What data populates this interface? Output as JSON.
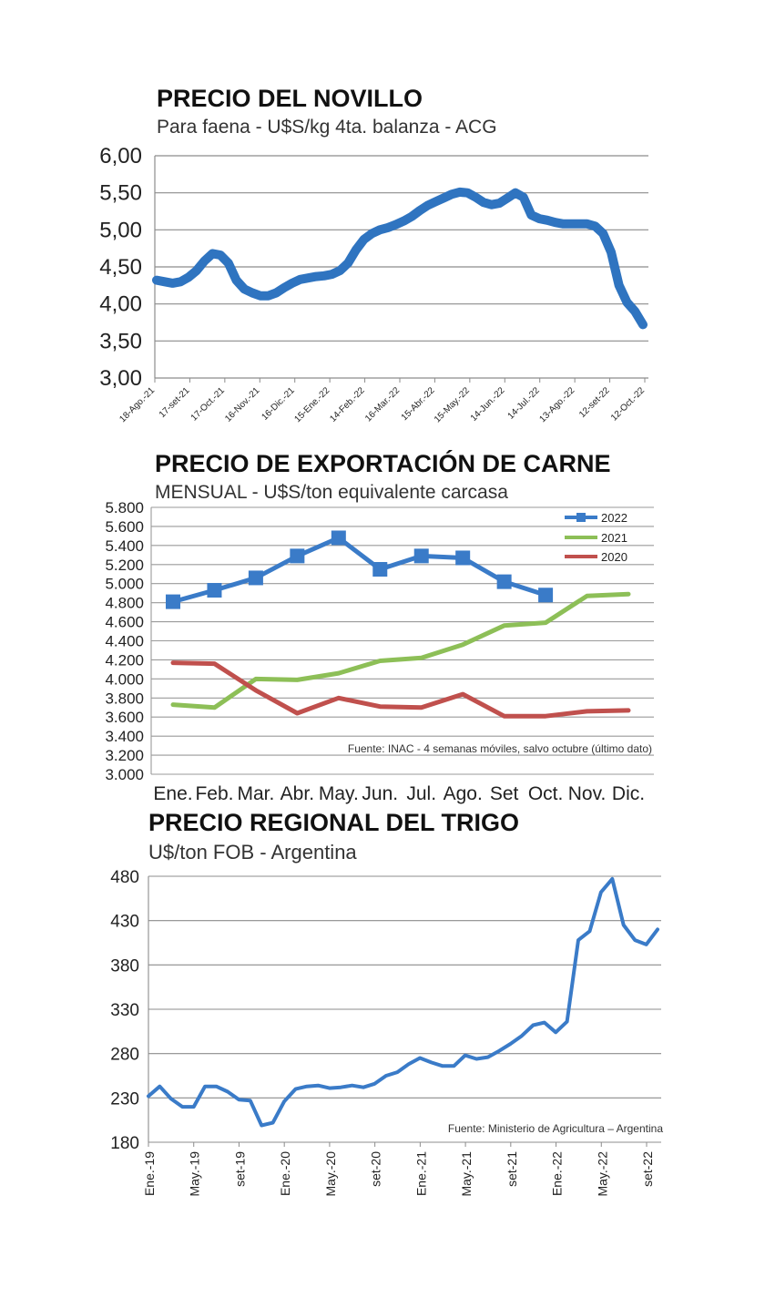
{
  "chart_data": [
    {
      "type": "line",
      "title": "PRECIO DEL NOVILLO",
      "subtitle": "Para faena - U$S/kg 4ta. balanza - ACG",
      "x_tick_labels": [
        "18-Ago.-21",
        "17-set-21",
        "17-Oct.-21",
        "16-Nov.-21",
        "16-Dic.-21",
        "15-Ene.-22",
        "14-Feb.-22",
        "16-Mar.-22",
        "15-Abr.-22",
        "15-May.-22",
        "14-Jun.-22",
        "14-Jul.-22",
        "13-Ago.-22",
        "12-set-22",
        "12-Oct.-22"
      ],
      "y_tick_labels": [
        "6,00",
        "5,50",
        "5,00",
        "4,50",
        "4,00",
        "3,50",
        "3,00"
      ],
      "ylim": [
        3,
        6
      ],
      "grid": true,
      "color": "#2f74c0",
      "values": [
        4.32,
        4.3,
        4.28,
        4.3,
        4.36,
        4.45,
        4.58,
        4.68,
        4.66,
        4.55,
        4.32,
        4.2,
        4.15,
        4.11,
        4.11,
        4.15,
        4.22,
        4.28,
        4.33,
        4.35,
        4.37,
        4.38,
        4.4,
        4.45,
        4.55,
        4.73,
        4.87,
        4.95,
        5.0,
        5.03,
        5.07,
        5.12,
        5.18,
        5.26,
        5.33,
        5.38,
        5.43,
        5.48,
        5.51,
        5.5,
        5.44,
        5.37,
        5.34,
        5.36,
        5.43,
        5.5,
        5.44,
        5.2,
        5.15,
        5.13,
        5.1,
        5.08,
        5.08,
        5.08,
        5.08,
        5.05,
        4.95,
        4.7,
        4.25,
        4.02,
        3.9,
        3.72
      ]
    },
    {
      "type": "line",
      "title": "PRECIO DE EXPORTACIÓN DE CARNE",
      "subtitle": "MENSUAL - U$S/ton equivalente carcasa",
      "categories": [
        "Ene.",
        "Feb.",
        "Mar.",
        "Abr.",
        "May.",
        "Jun.",
        "Jul.",
        "Ago.",
        "Set",
        "Oct.",
        "Nov.",
        "Dic."
      ],
      "y_tick_labels": [
        "5.800",
        "5.600",
        "5.400",
        "5.200",
        "5.000",
        "4.800",
        "4.600",
        "4.400",
        "4.200",
        "4.000",
        "3.800",
        "3.600",
        "3.400",
        "3.200",
        "3.000"
      ],
      "ylim": [
        3000,
        5800
      ],
      "legend": "top-right",
      "source": "Fuente: INAC - 4 semanas móviles, salvo octubre (último dato)",
      "series": [
        {
          "name": "2022",
          "color": "#3a7bc8",
          "marker": "square",
          "values": [
            4810,
            4930,
            5060,
            5290,
            5480,
            5150,
            5290,
            5270,
            5020,
            4880,
            null,
            null
          ]
        },
        {
          "name": "2021",
          "color": "#8dbf57",
          "values": [
            3730,
            3700,
            4000,
            3990,
            4060,
            4190,
            4220,
            4360,
            4560,
            4590,
            4870,
            4890
          ]
        },
        {
          "name": "2020",
          "color": "#c0504d",
          "values": [
            4170,
            4160,
            3880,
            3640,
            3800,
            3710,
            3700,
            3840,
            3610,
            3610,
            3660,
            3670
          ]
        }
      ]
    },
    {
      "type": "line",
      "title": "PRECIO REGIONAL DEL TRIGO",
      "subtitle": "U$/ton FOB - Argentina",
      "x_tick_labels": [
        "Ene.-19",
        "May.-19",
        "set-19",
        "Ene.-20",
        "May.-20",
        "set-20",
        "Ene.-21",
        "May.-21",
        "set-21",
        "Ene.-22",
        "May.-22",
        "set-22"
      ],
      "y_tick_labels": [
        "480",
        "430",
        "380",
        "330",
        "280",
        "230",
        "180"
      ],
      "ylim": [
        180,
        480
      ],
      "grid": true,
      "color": "#3a7bc8",
      "source": "Fuente: Ministerio de Agricultura – Argentina",
      "values": [
        232,
        243,
        229,
        220,
        220,
        243,
        243,
        237,
        228,
        227,
        199,
        202,
        226,
        240,
        243,
        244,
        241,
        242,
        244,
        242,
        246,
        255,
        259,
        268,
        275,
        270,
        266,
        266,
        278,
        274,
        276,
        283,
        291,
        300,
        312,
        315,
        304,
        316,
        408,
        418,
        462,
        477,
        425,
        408,
        403,
        420
      ]
    }
  ]
}
